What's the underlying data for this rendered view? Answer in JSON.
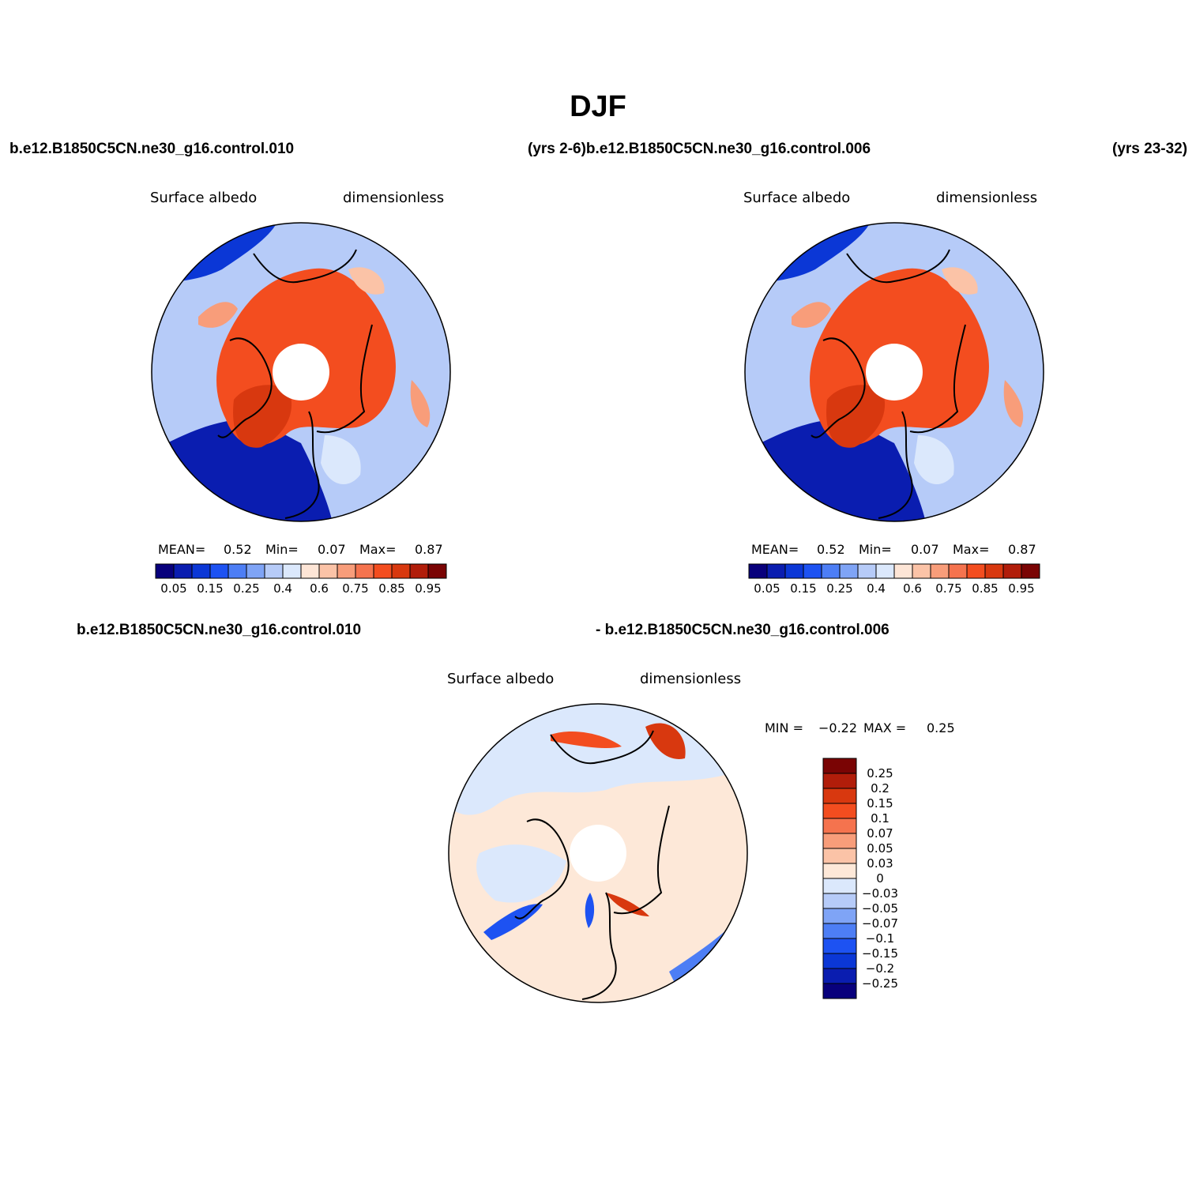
{
  "figure": {
    "title": "DJF",
    "case_left": "b.e12.B1850C5CN.ne30_g16.control.010",
    "case_middle": "(yrs 2-6)b.e12.B1850C5CN.ne30_g16.control.006",
    "case_right": "(yrs 23-32)",
    "diff_case_left": "b.e12.B1850C5CN.ne30_g16.control.010",
    "diff_case_right": "- b.e12.B1850C5CN.ne30_g16.control.006"
  },
  "chart_data": [
    {
      "type": "heatmap",
      "projection": "north-polar-stereographic",
      "variable": "Surface albedo",
      "units": "dimensionless",
      "stats": {
        "mean_label": "MEAN=",
        "mean": "0.52",
        "min_label": "Min=",
        "min": "0.07",
        "max_label": "Max=",
        "max": "0.87"
      },
      "levels": [
        0.05,
        0.1,
        0.15,
        0.2,
        0.25,
        0.3,
        0.4,
        0.5,
        0.6,
        0.7,
        0.75,
        0.8,
        0.85,
        0.9,
        0.95
      ],
      "tick_labels": [
        "0.05",
        "0.15",
        "0.25",
        "0.4",
        "0.6",
        "0.75",
        "0.85",
        "0.95"
      ],
      "colors": [
        "#08007c",
        "#0a1db0",
        "#0b37d6",
        "#1d52f2",
        "#4d7ef5",
        "#7fa4f6",
        "#b6cbf8",
        "#dbe8fc",
        "#fde5d6",
        "#fbc3a7",
        "#f89d7a",
        "#f5734e",
        "#f34d1f",
        "#d8380f",
        "#b11d0a",
        "#7a0404"
      ]
    },
    {
      "type": "heatmap",
      "projection": "north-polar-stereographic",
      "variable": "Surface albedo",
      "units": "dimensionless",
      "stats": {
        "mean_label": "MEAN=",
        "mean": "0.52",
        "min_label": "Min=",
        "min": "0.07",
        "max_label": "Max=",
        "max": "0.87"
      },
      "levels": [
        0.05,
        0.1,
        0.15,
        0.2,
        0.25,
        0.3,
        0.4,
        0.5,
        0.6,
        0.7,
        0.75,
        0.8,
        0.85,
        0.9,
        0.95
      ],
      "tick_labels": [
        "0.05",
        "0.15",
        "0.25",
        "0.4",
        "0.6",
        "0.75",
        "0.85",
        "0.95"
      ],
      "colors": [
        "#08007c",
        "#0a1db0",
        "#0b37d6",
        "#1d52f2",
        "#4d7ef5",
        "#7fa4f6",
        "#b6cbf8",
        "#dbe8fc",
        "#fde5d6",
        "#fbc3a7",
        "#f89d7a",
        "#f5734e",
        "#f34d1f",
        "#d8380f",
        "#b11d0a",
        "#7a0404"
      ]
    },
    {
      "type": "heatmap",
      "projection": "north-polar-stereographic",
      "variable": "Surface albedo",
      "units": "dimensionless",
      "stats": {
        "min_label": "MIN =",
        "min": "−0.22",
        "max_label": "MAX =",
        "max": "0.25"
      },
      "levels": [
        -0.25,
        -0.2,
        -0.15,
        -0.1,
        -0.07,
        -0.05,
        -0.03,
        0,
        0.03,
        0.05,
        0.07,
        0.1,
        0.15,
        0.2,
        0.25
      ],
      "tick_labels": [
        "0.25",
        "0.2",
        "0.15",
        "0.1",
        "0.07",
        "0.05",
        "0.03",
        "0",
        "−0.03",
        "−0.05",
        "−0.07",
        "−0.1",
        "−0.15",
        "−0.2",
        "−0.25"
      ],
      "colors": [
        "#7a0404",
        "#b11d0a",
        "#d8380f",
        "#f34d1f",
        "#f5734e",
        "#f89d7a",
        "#fbc3a7",
        "#fde8d8",
        "#dbe8fc",
        "#b6cbf8",
        "#7fa4f6",
        "#4d7ef5",
        "#1d52f2",
        "#0b37d6",
        "#0a1db0",
        "#08007c"
      ]
    }
  ]
}
